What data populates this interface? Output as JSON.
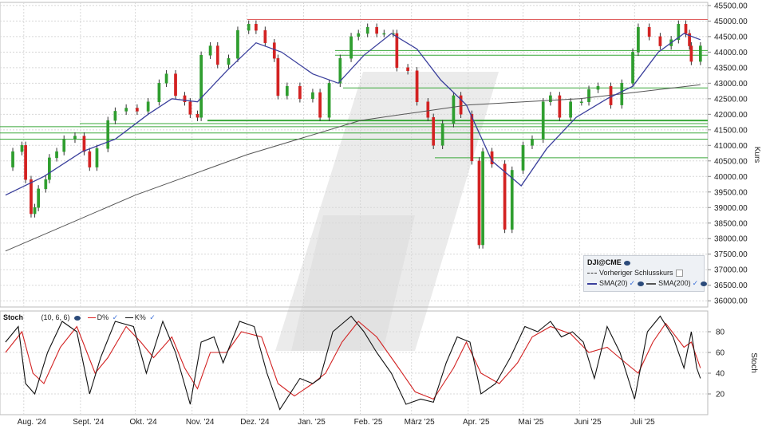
{
  "chart_data": [
    {
      "type": "candlestick",
      "symbol": "DJI@CME",
      "ylabel": "Kurs",
      "ylim": [
        35800,
        45600
      ],
      "y_ticks": [
        "45500.00",
        "45000.00",
        "44500.00",
        "44000.00",
        "43500.00",
        "43000.00",
        "42500.00",
        "42000.00",
        "41500.00",
        "41000.00",
        "40500.00",
        "40000.00",
        "39500.00",
        "39000.00",
        "38500.00",
        "38000.00",
        "37500.00",
        "37000.00",
        "36500.00",
        "36000.00"
      ],
      "x_labels": [
        "Aug. '24",
        "Sept. '24",
        "Okt. '24",
        "Nov. '24",
        "Dez. '24",
        "Jan. '25",
        "Feb. '25",
        "März '25",
        "Apr. '25",
        "Mai '25",
        "Juni '25",
        "Juli '25"
      ],
      "close_series": [
        {
          "d": "2024-07-22",
          "c": 40300
        },
        {
          "d": "2024-07-26",
          "c": 40800
        },
        {
          "d": "2024-07-31",
          "c": 41000
        },
        {
          "d": "2024-08-02",
          "c": 39900
        },
        {
          "d": "2024-08-05",
          "c": 38800
        },
        {
          "d": "2024-08-07",
          "c": 39000
        },
        {
          "d": "2024-08-09",
          "c": 39600
        },
        {
          "d": "2024-08-13",
          "c": 39900
        },
        {
          "d": "2024-08-15",
          "c": 40600
        },
        {
          "d": "2024-08-19",
          "c": 40800
        },
        {
          "d": "2024-08-23",
          "c": 41200
        },
        {
          "d": "2024-08-29",
          "c": 41300
        },
        {
          "d": "2024-09-03",
          "c": 40800
        },
        {
          "d": "2024-09-06",
          "c": 40300
        },
        {
          "d": "2024-09-10",
          "c": 40900
        },
        {
          "d": "2024-09-16",
          "c": 41800
        },
        {
          "d": "2024-09-20",
          "c": 42100
        },
        {
          "d": "2024-09-26",
          "c": 42200
        },
        {
          "d": "2024-10-02",
          "c": 42100
        },
        {
          "d": "2024-10-08",
          "c": 42400
        },
        {
          "d": "2024-10-14",
          "c": 43000
        },
        {
          "d": "2024-10-18",
          "c": 43300
        },
        {
          "d": "2024-10-23",
          "c": 42600
        },
        {
          "d": "2024-10-28",
          "c": 42400
        },
        {
          "d": "2024-10-31",
          "c": 42000
        },
        {
          "d": "2024-11-04",
          "c": 41900
        },
        {
          "d": "2024-11-06",
          "c": 43900
        },
        {
          "d": "2024-11-11",
          "c": 44200
        },
        {
          "d": "2024-11-15",
          "c": 43600
        },
        {
          "d": "2024-11-21",
          "c": 43800
        },
        {
          "d": "2024-11-26",
          "c": 44700
        },
        {
          "d": "2024-12-02",
          "c": 44900
        },
        {
          "d": "2024-12-06",
          "c": 44700
        },
        {
          "d": "2024-12-11",
          "c": 44300
        },
        {
          "d": "2024-12-16",
          "c": 43800
        },
        {
          "d": "2024-12-18",
          "c": 42600
        },
        {
          "d": "2024-12-23",
          "c": 42900
        },
        {
          "d": "2024-12-30",
          "c": 42500
        },
        {
          "d": "2025-01-06",
          "c": 42700
        },
        {
          "d": "2025-01-10",
          "c": 41900
        },
        {
          "d": "2025-01-15",
          "c": 43000
        },
        {
          "d": "2025-01-21",
          "c": 43800
        },
        {
          "d": "2025-01-27",
          "c": 44500
        },
        {
          "d": "2025-01-31",
          "c": 44600
        },
        {
          "d": "2025-02-05",
          "c": 44800
        },
        {
          "d": "2025-02-10",
          "c": 44600
        },
        {
          "d": "2025-02-14",
          "c": 44600
        },
        {
          "d": "2025-02-19",
          "c": 44600
        },
        {
          "d": "2025-02-21",
          "c": 43500
        },
        {
          "d": "2025-02-27",
          "c": 43400
        },
        {
          "d": "2025-03-04",
          "c": 42400
        },
        {
          "d": "2025-03-10",
          "c": 41900
        },
        {
          "d": "2025-03-13",
          "c": 41000
        },
        {
          "d": "2025-03-18",
          "c": 41700
        },
        {
          "d": "2025-03-24",
          "c": 42600
        },
        {
          "d": "2025-03-28",
          "c": 42000
        },
        {
          "d": "2025-04-03",
          "c": 40500
        },
        {
          "d": "2025-04-07",
          "c": 37800
        },
        {
          "d": "2025-04-09",
          "c": 40800
        },
        {
          "d": "2025-04-14",
          "c": 40400
        },
        {
          "d": "2025-04-21",
          "c": 38300
        },
        {
          "d": "2025-04-25",
          "c": 40200
        },
        {
          "d": "2025-05-01",
          "c": 41000
        },
        {
          "d": "2025-05-06",
          "c": 41200
        },
        {
          "d": "2025-05-12",
          "c": 42400
        },
        {
          "d": "2025-05-16",
          "c": 42600
        },
        {
          "d": "2025-05-21",
          "c": 41900
        },
        {
          "d": "2025-05-27",
          "c": 42400
        },
        {
          "d": "2025-06-02",
          "c": 42400
        },
        {
          "d": "2025-06-06",
          "c": 42800
        },
        {
          "d": "2025-06-11",
          "c": 42900
        },
        {
          "d": "2025-06-18",
          "c": 42300
        },
        {
          "d": "2025-06-24",
          "c": 43000
        },
        {
          "d": "2025-06-30",
          "c": 44000
        },
        {
          "d": "2025-07-03",
          "c": 44800
        },
        {
          "d": "2025-07-09",
          "c": 44500
        },
        {
          "d": "2025-07-15",
          "c": 44200
        },
        {
          "d": "2025-07-21",
          "c": 44400
        },
        {
          "d": "2025-07-25",
          "c": 44900
        },
        {
          "d": "2025-07-29",
          "c": 44600
        },
        {
          "d": "2025-07-31",
          "c": 44200
        },
        {
          "d": "2025-08-01",
          "c": 43700
        },
        {
          "d": "2025-08-06",
          "c": 44200
        }
      ],
      "sma20": [
        {
          "d": "2024-07-22",
          "v": 39400
        },
        {
          "d": "2024-08-12",
          "v": 40000
        },
        {
          "d": "2024-09-02",
          "v": 40800
        },
        {
          "d": "2024-09-20",
          "v": 41200
        },
        {
          "d": "2024-10-08",
          "v": 42000
        },
        {
          "d": "2024-10-21",
          "v": 42500
        },
        {
          "d": "2024-11-04",
          "v": 42400
        },
        {
          "d": "2024-11-20",
          "v": 43400
        },
        {
          "d": "2024-12-06",
          "v": 44300
        },
        {
          "d": "2024-12-20",
          "v": 44000
        },
        {
          "d": "2025-01-06",
          "v": 43300
        },
        {
          "d": "2025-01-20",
          "v": 43000
        },
        {
          "d": "2025-02-03",
          "v": 43900
        },
        {
          "d": "2025-02-18",
          "v": 44600
        },
        {
          "d": "2025-03-04",
          "v": 44100
        },
        {
          "d": "2025-03-17",
          "v": 43100
        },
        {
          "d": "2025-03-31",
          "v": 42300
        },
        {
          "d": "2025-04-14",
          "v": 40500
        },
        {
          "d": "2025-04-30",
          "v": 39700
        },
        {
          "d": "2025-05-14",
          "v": 40900
        },
        {
          "d": "2025-05-30",
          "v": 41900
        },
        {
          "d": "2025-06-16",
          "v": 42500
        },
        {
          "d": "2025-06-30",
          "v": 42900
        },
        {
          "d": "2025-07-14",
          "v": 44000
        },
        {
          "d": "2025-07-28",
          "v": 44600
        },
        {
          "d": "2025-08-06",
          "v": 44400
        }
      ],
      "sma200": [
        {
          "d": "2024-07-22",
          "v": 37600
        },
        {
          "d": "2024-10-01",
          "v": 39400
        },
        {
          "d": "2024-12-01",
          "v": 40700
        },
        {
          "d": "2025-02-01",
          "v": 41800
        },
        {
          "d": "2025-04-01",
          "v": 42300
        },
        {
          "d": "2025-06-01",
          "v": 42500
        },
        {
          "d": "2025-08-06",
          "v": 42950
        }
      ],
      "resistance_level": 45050,
      "support_levels": [
        44050,
        43900,
        42850,
        41800,
        41700,
        41600,
        41400,
        41200,
        40600
      ],
      "legend": {
        "title": "DJI@CME",
        "items": [
          "Vorheriger Schlusskurs",
          "SMA(20)",
          "SMA(200)"
        ]
      }
    },
    {
      "type": "line",
      "indicator": "Stoch",
      "params": "(10, 6, 6)",
      "ylabel": "Stoch",
      "ylim": [
        0,
        100
      ],
      "y_ticks": [
        "80",
        "60",
        "40",
        "20"
      ],
      "series": [
        {
          "name": "D%",
          "color": "#d22222"
        },
        {
          "name": "K%",
          "color": "#111111"
        }
      ],
      "k_values": [
        {
          "d": "2024-07-22",
          "v": 70
        },
        {
          "d": "2024-07-29",
          "v": 85
        },
        {
          "d": "2024-08-02",
          "v": 30
        },
        {
          "d": "2024-08-07",
          "v": 20
        },
        {
          "d": "2024-08-14",
          "v": 60
        },
        {
          "d": "2024-08-22",
          "v": 90
        },
        {
          "d": "2024-08-30",
          "v": 80
        },
        {
          "d": "2024-09-06",
          "v": 20
        },
        {
          "d": "2024-09-12",
          "v": 55
        },
        {
          "d": "2024-09-20",
          "v": 90
        },
        {
          "d": "2024-09-30",
          "v": 85
        },
        {
          "d": "2024-10-07",
          "v": 40
        },
        {
          "d": "2024-10-16",
          "v": 90
        },
        {
          "d": "2024-10-23",
          "v": 60
        },
        {
          "d": "2024-10-31",
          "v": 10
        },
        {
          "d": "2024-11-06",
          "v": 70
        },
        {
          "d": "2024-11-13",
          "v": 75
        },
        {
          "d": "2024-11-18",
          "v": 50
        },
        {
          "d": "2024-11-27",
          "v": 90
        },
        {
          "d": "2024-12-05",
          "v": 85
        },
        {
          "d": "2024-12-12",
          "v": 40
        },
        {
          "d": "2024-12-19",
          "v": 5
        },
        {
          "d": "2024-12-30",
          "v": 35
        },
        {
          "d": "2025-01-06",
          "v": 30
        },
        {
          "d": "2025-01-10",
          "v": 35
        },
        {
          "d": "2025-01-17",
          "v": 80
        },
        {
          "d": "2025-01-27",
          "v": 95
        },
        {
          "d": "2025-02-03",
          "v": 80
        },
        {
          "d": "2025-02-10",
          "v": 60
        },
        {
          "d": "2025-02-18",
          "v": 40
        },
        {
          "d": "2025-02-26",
          "v": 10
        },
        {
          "d": "2025-03-06",
          "v": 15
        },
        {
          "d": "2025-03-13",
          "v": 12
        },
        {
          "d": "2025-03-20",
          "v": 50
        },
        {
          "d": "2025-03-26",
          "v": 75
        },
        {
          "d": "2025-04-02",
          "v": 70
        },
        {
          "d": "2025-04-08",
          "v": 20
        },
        {
          "d": "2025-04-16",
          "v": 30
        },
        {
          "d": "2025-04-24",
          "v": 55
        },
        {
          "d": "2025-05-02",
          "v": 85
        },
        {
          "d": "2025-05-09",
          "v": 80
        },
        {
          "d": "2025-05-16",
          "v": 90
        },
        {
          "d": "2025-05-22",
          "v": 75
        },
        {
          "d": "2025-05-28",
          "v": 80
        },
        {
          "d": "2025-06-03",
          "v": 70
        },
        {
          "d": "2025-06-09",
          "v": 35
        },
        {
          "d": "2025-06-16",
          "v": 85
        },
        {
          "d": "2025-06-23",
          "v": 60
        },
        {
          "d": "2025-07-01",
          "v": 15
        },
        {
          "d": "2025-07-08",
          "v": 80
        },
        {
          "d": "2025-07-15",
          "v": 95
        },
        {
          "d": "2025-07-22",
          "v": 75
        },
        {
          "d": "2025-07-28",
          "v": 45
        },
        {
          "d": "2025-08-01",
          "v": 80
        },
        {
          "d": "2025-08-04",
          "v": 45
        },
        {
          "d": "2025-08-06",
          "v": 35
        }
      ],
      "d_values": [
        {
          "d": "2024-07-22",
          "v": 60
        },
        {
          "d": "2024-07-31",
          "v": 80
        },
        {
          "d": "2024-08-06",
          "v": 40
        },
        {
          "d": "2024-08-12",
          "v": 30
        },
        {
          "d": "2024-08-21",
          "v": 65
        },
        {
          "d": "2024-08-30",
          "v": 85
        },
        {
          "d": "2024-09-09",
          "v": 40
        },
        {
          "d": "2024-09-16",
          "v": 55
        },
        {
          "d": "2024-09-26",
          "v": 85
        },
        {
          "d": "2024-10-04",
          "v": 70
        },
        {
          "d": "2024-10-11",
          "v": 55
        },
        {
          "d": "2024-10-21",
          "v": 75
        },
        {
          "d": "2024-10-28",
          "v": 45
        },
        {
          "d": "2024-11-04",
          "v": 25
        },
        {
          "d": "2024-11-11",
          "v": 60
        },
        {
          "d": "2024-11-20",
          "v": 60
        },
        {
          "d": "2024-11-28",
          "v": 80
        },
        {
          "d": "2024-12-09",
          "v": 75
        },
        {
          "d": "2024-12-18",
          "v": 30
        },
        {
          "d": "2024-12-27",
          "v": 18
        },
        {
          "d": "2025-01-06",
          "v": 30
        },
        {
          "d": "2025-01-13",
          "v": 40
        },
        {
          "d": "2025-01-22",
          "v": 70
        },
        {
          "d": "2025-01-31",
          "v": 90
        },
        {
          "d": "2025-02-10",
          "v": 75
        },
        {
          "d": "2025-02-20",
          "v": 50
        },
        {
          "d": "2025-03-03",
          "v": 22
        },
        {
          "d": "2025-03-13",
          "v": 15
        },
        {
          "d": "2025-03-24",
          "v": 45
        },
        {
          "d": "2025-03-31",
          "v": 70
        },
        {
          "d": "2025-04-08",
          "v": 40
        },
        {
          "d": "2025-04-18",
          "v": 30
        },
        {
          "d": "2025-04-28",
          "v": 50
        },
        {
          "d": "2025-05-06",
          "v": 75
        },
        {
          "d": "2025-05-16",
          "v": 85
        },
        {
          "d": "2025-05-27",
          "v": 78
        },
        {
          "d": "2025-06-06",
          "v": 60
        },
        {
          "d": "2025-06-16",
          "v": 65
        },
        {
          "d": "2025-06-26",
          "v": 50
        },
        {
          "d": "2025-07-03",
          "v": 40
        },
        {
          "d": "2025-07-11",
          "v": 70
        },
        {
          "d": "2025-07-18",
          "v": 88
        },
        {
          "d": "2025-07-28",
          "v": 65
        },
        {
          "d": "2025-08-01",
          "v": 70
        },
        {
          "d": "2025-08-06",
          "v": 45
        }
      ]
    }
  ],
  "stoch_legend": {
    "title": "Stoch",
    "params": "(10, 6, 6)",
    "d_label": "D%",
    "k_label": "K%"
  },
  "price_legend": {
    "title": "DJI@CME",
    "prev_close": "Vorheriger Schlusskurs",
    "sma20": "SMA(20)",
    "sma200": "SMA(200)"
  },
  "colors": {
    "up": "#2f9e2f",
    "down": "#d32222",
    "sma20": "#3a3f9c",
    "sma200": "#555555",
    "resistance": "#e06060",
    "support": "#3aa83a",
    "grid": "#d8d8d8"
  }
}
